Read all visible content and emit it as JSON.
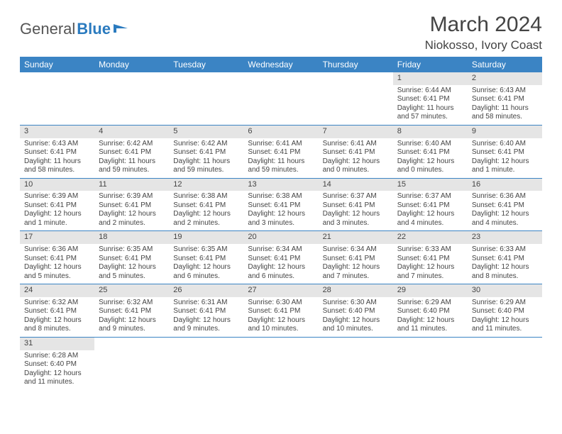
{
  "logo": {
    "text1": "General",
    "text2": "Blue"
  },
  "title": "March 2024",
  "location": "Niokosso, Ivory Coast",
  "colors": {
    "header_bg": "#3b84c4",
    "daynum_bg": "#e5e5e5",
    "rule": "#3b84c4"
  },
  "weekdays": [
    "Sunday",
    "Monday",
    "Tuesday",
    "Wednesday",
    "Thursday",
    "Friday",
    "Saturday"
  ],
  "weeks": [
    [
      null,
      null,
      null,
      null,
      null,
      {
        "n": "1",
        "sr": "Sunrise: 6:44 AM",
        "ss": "Sunset: 6:41 PM",
        "dl": "Daylight: 11 hours and 57 minutes."
      },
      {
        "n": "2",
        "sr": "Sunrise: 6:43 AM",
        "ss": "Sunset: 6:41 PM",
        "dl": "Daylight: 11 hours and 58 minutes."
      }
    ],
    [
      {
        "n": "3",
        "sr": "Sunrise: 6:43 AM",
        "ss": "Sunset: 6:41 PM",
        "dl": "Daylight: 11 hours and 58 minutes."
      },
      {
        "n": "4",
        "sr": "Sunrise: 6:42 AM",
        "ss": "Sunset: 6:41 PM",
        "dl": "Daylight: 11 hours and 59 minutes."
      },
      {
        "n": "5",
        "sr": "Sunrise: 6:42 AM",
        "ss": "Sunset: 6:41 PM",
        "dl": "Daylight: 11 hours and 59 minutes."
      },
      {
        "n": "6",
        "sr": "Sunrise: 6:41 AM",
        "ss": "Sunset: 6:41 PM",
        "dl": "Daylight: 11 hours and 59 minutes."
      },
      {
        "n": "7",
        "sr": "Sunrise: 6:41 AM",
        "ss": "Sunset: 6:41 PM",
        "dl": "Daylight: 12 hours and 0 minutes."
      },
      {
        "n": "8",
        "sr": "Sunrise: 6:40 AM",
        "ss": "Sunset: 6:41 PM",
        "dl": "Daylight: 12 hours and 0 minutes."
      },
      {
        "n": "9",
        "sr": "Sunrise: 6:40 AM",
        "ss": "Sunset: 6:41 PM",
        "dl": "Daylight: 12 hours and 1 minute."
      }
    ],
    [
      {
        "n": "10",
        "sr": "Sunrise: 6:39 AM",
        "ss": "Sunset: 6:41 PM",
        "dl": "Daylight: 12 hours and 1 minute."
      },
      {
        "n": "11",
        "sr": "Sunrise: 6:39 AM",
        "ss": "Sunset: 6:41 PM",
        "dl": "Daylight: 12 hours and 2 minutes."
      },
      {
        "n": "12",
        "sr": "Sunrise: 6:38 AM",
        "ss": "Sunset: 6:41 PM",
        "dl": "Daylight: 12 hours and 2 minutes."
      },
      {
        "n": "13",
        "sr": "Sunrise: 6:38 AM",
        "ss": "Sunset: 6:41 PM",
        "dl": "Daylight: 12 hours and 3 minutes."
      },
      {
        "n": "14",
        "sr": "Sunrise: 6:37 AM",
        "ss": "Sunset: 6:41 PM",
        "dl": "Daylight: 12 hours and 3 minutes."
      },
      {
        "n": "15",
        "sr": "Sunrise: 6:37 AM",
        "ss": "Sunset: 6:41 PM",
        "dl": "Daylight: 12 hours and 4 minutes."
      },
      {
        "n": "16",
        "sr": "Sunrise: 6:36 AM",
        "ss": "Sunset: 6:41 PM",
        "dl": "Daylight: 12 hours and 4 minutes."
      }
    ],
    [
      {
        "n": "17",
        "sr": "Sunrise: 6:36 AM",
        "ss": "Sunset: 6:41 PM",
        "dl": "Daylight: 12 hours and 5 minutes."
      },
      {
        "n": "18",
        "sr": "Sunrise: 6:35 AM",
        "ss": "Sunset: 6:41 PM",
        "dl": "Daylight: 12 hours and 5 minutes."
      },
      {
        "n": "19",
        "sr": "Sunrise: 6:35 AM",
        "ss": "Sunset: 6:41 PM",
        "dl": "Daylight: 12 hours and 6 minutes."
      },
      {
        "n": "20",
        "sr": "Sunrise: 6:34 AM",
        "ss": "Sunset: 6:41 PM",
        "dl": "Daylight: 12 hours and 6 minutes."
      },
      {
        "n": "21",
        "sr": "Sunrise: 6:34 AM",
        "ss": "Sunset: 6:41 PM",
        "dl": "Daylight: 12 hours and 7 minutes."
      },
      {
        "n": "22",
        "sr": "Sunrise: 6:33 AM",
        "ss": "Sunset: 6:41 PM",
        "dl": "Daylight: 12 hours and 7 minutes."
      },
      {
        "n": "23",
        "sr": "Sunrise: 6:33 AM",
        "ss": "Sunset: 6:41 PM",
        "dl": "Daylight: 12 hours and 8 minutes."
      }
    ],
    [
      {
        "n": "24",
        "sr": "Sunrise: 6:32 AM",
        "ss": "Sunset: 6:41 PM",
        "dl": "Daylight: 12 hours and 8 minutes."
      },
      {
        "n": "25",
        "sr": "Sunrise: 6:32 AM",
        "ss": "Sunset: 6:41 PM",
        "dl": "Daylight: 12 hours and 9 minutes."
      },
      {
        "n": "26",
        "sr": "Sunrise: 6:31 AM",
        "ss": "Sunset: 6:41 PM",
        "dl": "Daylight: 12 hours and 9 minutes."
      },
      {
        "n": "27",
        "sr": "Sunrise: 6:30 AM",
        "ss": "Sunset: 6:41 PM",
        "dl": "Daylight: 12 hours and 10 minutes."
      },
      {
        "n": "28",
        "sr": "Sunrise: 6:30 AM",
        "ss": "Sunset: 6:40 PM",
        "dl": "Daylight: 12 hours and 10 minutes."
      },
      {
        "n": "29",
        "sr": "Sunrise: 6:29 AM",
        "ss": "Sunset: 6:40 PM",
        "dl": "Daylight: 12 hours and 11 minutes."
      },
      {
        "n": "30",
        "sr": "Sunrise: 6:29 AM",
        "ss": "Sunset: 6:40 PM",
        "dl": "Daylight: 12 hours and 11 minutes."
      }
    ],
    [
      {
        "n": "31",
        "sr": "Sunrise: 6:28 AM",
        "ss": "Sunset: 6:40 PM",
        "dl": "Daylight: 12 hours and 11 minutes."
      },
      null,
      null,
      null,
      null,
      null,
      null
    ]
  ]
}
